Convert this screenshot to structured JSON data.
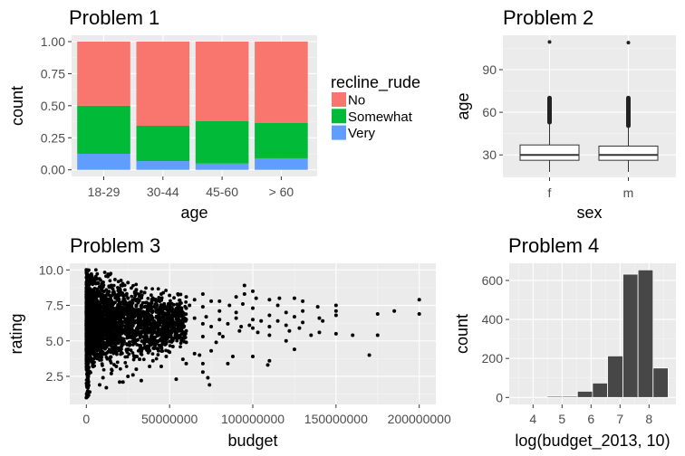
{
  "chart_data": [
    {
      "type": "bar",
      "stacked": "fill",
      "title": "Problem 1",
      "xlabel": "age",
      "ylabel": "count",
      "categories": [
        "18-29",
        "30-44",
        "45-60",
        "> 60"
      ],
      "series": [
        {
          "name": "No",
          "color": "#F8766D",
          "values": [
            0.5,
            0.656,
            0.621,
            0.635
          ]
        },
        {
          "name": "Somewhat",
          "color": "#00BA38",
          "values": [
            0.375,
            0.276,
            0.33,
            0.275
          ]
        },
        {
          "name": "Very",
          "color": "#619CFF",
          "values": [
            0.125,
            0.068,
            0.049,
            0.09
          ]
        }
      ],
      "yticks": [
        "0.00",
        "0.25",
        "0.50",
        "0.75",
        "1.00"
      ],
      "ylim": [
        -0.05,
        1.05
      ],
      "legend": {
        "title": "recline_rude",
        "placement": "right",
        "labels": [
          "No",
          "Somewhat",
          "Very"
        ]
      },
      "grid": true
    },
    {
      "type": "box",
      "title": "Problem 2",
      "xlabel": "sex",
      "ylabel": "age",
      "categories": [
        "f",
        "m"
      ],
      "boxes": [
        {
          "lower_whisker": 18,
          "q1": 26.2,
          "median": 30,
          "q3": 37,
          "upper_whisker": 53,
          "outlier_band": [
            53,
            70
          ],
          "outliers": [
            109.5
          ]
        },
        {
          "lower_whisker": 18,
          "q1": 26.2,
          "median": 30,
          "q3": 36.2,
          "upper_whisker": 50.5,
          "outlier_band": [
            50.5,
            70
          ],
          "outliers": [
            109
          ]
        }
      ],
      "yticks": [
        30,
        60,
        90
      ],
      "ylim": [
        14.2,
        114.2
      ],
      "grid": true
    },
    {
      "type": "scatter",
      "title": "Problem 3",
      "xlabel": "budget",
      "ylabel": "rating",
      "xticks": [
        "0",
        "50000000",
        "100000000",
        "150000000",
        "200000000"
      ],
      "xtick_values": [
        0,
        50000000,
        100000000,
        150000000,
        200000000
      ],
      "yticks": [
        "2.5",
        "5.0",
        "7.5",
        "10.0"
      ],
      "ytick_values": [
        2.5,
        5.0,
        7.5,
        10.0
      ],
      "xlim": [
        -10000000,
        210000000
      ],
      "ylim": [
        0.6,
        10.4
      ],
      "dense_cluster": {
        "note": "heavy overplotting near budget 0-60M",
        "budget_range": [
          0,
          60000000
        ],
        "rating_range": [
          1.0,
          10.0
        ]
      },
      "points": [
        [
          200000000,
          7.9
        ],
        [
          200000000,
          6.9
        ],
        [
          185000000,
          7.1
        ],
        [
          175000000,
          6.9
        ],
        [
          175000000,
          5.4
        ],
        [
          170000000,
          4.0
        ],
        [
          160000000,
          5.4
        ],
        [
          150000000,
          7.5
        ],
        [
          150000000,
          7.1
        ],
        [
          150000000,
          6.8
        ],
        [
          150000000,
          5.5
        ],
        [
          142000000,
          6.4
        ],
        [
          140000000,
          6.6
        ],
        [
          140000000,
          5.6
        ],
        [
          139000000,
          7.4
        ],
        [
          135000000,
          5.4
        ],
        [
          130000000,
          7.8
        ],
        [
          130000000,
          7.1
        ],
        [
          130000000,
          6.3
        ],
        [
          128000000,
          5.9
        ],
        [
          125000000,
          8.0
        ],
        [
          125000000,
          6.7
        ],
        [
          125000000,
          4.4
        ],
        [
          122000000,
          5.7
        ],
        [
          120000000,
          7.0
        ],
        [
          120000000,
          6.1
        ],
        [
          120000000,
          5.0
        ],
        [
          116000000,
          8.0
        ],
        [
          115000000,
          6.4
        ],
        [
          115000000,
          7.5
        ],
        [
          110000000,
          7.9
        ],
        [
          110000000,
          6.8
        ],
        [
          110000000,
          6.0
        ],
        [
          110000000,
          5.4
        ],
        [
          110000000,
          3.6
        ],
        [
          109000000,
          3.3
        ],
        [
          105000000,
          6.4
        ],
        [
          103000000,
          5.6
        ],
        [
          102000000,
          8.0
        ],
        [
          100000000,
          8.5
        ],
        [
          100000000,
          7.3
        ],
        [
          100000000,
          6.5
        ],
        [
          100000000,
          5.9
        ],
        [
          100000000,
          3.9
        ],
        [
          98000000,
          6.1
        ],
        [
          95000000,
          8.9
        ],
        [
          95000000,
          8.3
        ],
        [
          94000000,
          7.6
        ],
        [
          93000000,
          6.0
        ],
        [
          92000000,
          5.7
        ],
        [
          90000000,
          8.1
        ],
        [
          90000000,
          7.0
        ],
        [
          90000000,
          6.6
        ],
        [
          88000000,
          3.9
        ],
        [
          86000000,
          7.5
        ],
        [
          85000000,
          6.2
        ],
        [
          85000000,
          3.4
        ],
        [
          82000000,
          5.3
        ],
        [
          80000000,
          7.8
        ],
        [
          80000000,
          7.1
        ],
        [
          80000000,
          6.5
        ],
        [
          80000000,
          5.5
        ],
        [
          78000000,
          4.9
        ],
        [
          75000000,
          7.8
        ],
        [
          75000000,
          6.0
        ],
        [
          75000000,
          4.3
        ],
        [
          74000000,
          1.9
        ],
        [
          73000000,
          2.4
        ],
        [
          72000000,
          6.7
        ],
        [
          70000000,
          8.3
        ],
        [
          70000000,
          7.4
        ],
        [
          70000000,
          6.2
        ],
        [
          70000000,
          5.3
        ],
        [
          70000000,
          3.4
        ],
        [
          70000000,
          2.8
        ],
        [
          68000000,
          4.0
        ],
        [
          65000000,
          7.9
        ],
        [
          65000000,
          6.6
        ],
        [
          65000000,
          4.1
        ],
        [
          62000000,
          7.5
        ],
        [
          60000000,
          8.1
        ],
        [
          60000000,
          7.3
        ],
        [
          60000000,
          6.5
        ],
        [
          60000000,
          5.7
        ],
        [
          60000000,
          4.9
        ],
        [
          60000000,
          3.4
        ],
        [
          58000000,
          3.7
        ],
        [
          55000000,
          8.3
        ],
        [
          55000000,
          7.0
        ],
        [
          55000000,
          6.1
        ],
        [
          55000000,
          5.2
        ],
        [
          54000000,
          2.3
        ],
        [
          52000000,
          4.6
        ],
        [
          50000000,
          8.2
        ],
        [
          50000000,
          7.6
        ],
        [
          50000000,
          6.8
        ],
        [
          50000000,
          5.6
        ],
        [
          50000000,
          4.2
        ],
        [
          48000000,
          3.9
        ],
        [
          45000000,
          8.3
        ],
        [
          45000000,
          7.2
        ],
        [
          45000000,
          6.3
        ],
        [
          45000000,
          5.4
        ],
        [
          45000000,
          3.2
        ],
        [
          42000000,
          4.8
        ],
        [
          40000000,
          8.0
        ],
        [
          40000000,
          7.1
        ],
        [
          40000000,
          6.0
        ],
        [
          40000000,
          5.1
        ],
        [
          40000000,
          3.6
        ],
        [
          38000000,
          3.2
        ],
        [
          35000000,
          8.4
        ],
        [
          35000000,
          7.4
        ],
        [
          35000000,
          6.4
        ],
        [
          35000000,
          4.5
        ],
        [
          33000000,
          2.2
        ],
        [
          32000000,
          3.7
        ],
        [
          30000000,
          8.6
        ],
        [
          30000000,
          7.5
        ],
        [
          30000000,
          5.6
        ],
        [
          30000000,
          3.0
        ],
        [
          28000000,
          2.6
        ],
        [
          25000000,
          9.1
        ],
        [
          25000000,
          8.0
        ],
        [
          25000000,
          4.4
        ],
        [
          25000000,
          2.5
        ],
        [
          22000000,
          2.1
        ],
        [
          20000000,
          8.7
        ],
        [
          20000000,
          2.1
        ],
        [
          18000000,
          3.2
        ],
        [
          15000000,
          8.9
        ],
        [
          15000000,
          2.7
        ],
        [
          12000000,
          1.7
        ],
        [
          10000000,
          8.8
        ],
        [
          10000000,
          2.4
        ],
        [
          8000000,
          1.9
        ],
        [
          5000000,
          9.1
        ],
        [
          3000000,
          9.7
        ],
        [
          2000000,
          1.4
        ],
        [
          0,
          10.0
        ],
        [
          0,
          1.0
        ]
      ],
      "grid": true
    },
    {
      "type": "histogram",
      "title": "Problem 4",
      "xlabel": "log(budget_2013, 10)",
      "ylabel": "count",
      "bins": [
        {
          "x0": 4.49,
          "x1": 5.01,
          "count": 6
        },
        {
          "x0": 5.01,
          "x1": 5.53,
          "count": 6
        },
        {
          "x0": 5.53,
          "x1": 6.05,
          "count": 32
        },
        {
          "x0": 6.05,
          "x1": 6.57,
          "count": 74
        },
        {
          "x0": 6.57,
          "x1": 7.1,
          "count": 213
        },
        {
          "x0": 7.1,
          "x1": 7.62,
          "count": 632
        },
        {
          "x0": 7.62,
          "x1": 8.14,
          "count": 654
        },
        {
          "x0": 8.14,
          "x1": 8.66,
          "count": 151
        }
      ],
      "xticks": [
        4,
        5,
        6,
        7,
        8
      ],
      "yticks": [
        0,
        200,
        400,
        600
      ],
      "xlim": [
        3.17,
        8.94
      ],
      "ylim": [
        -34,
        688
      ],
      "bar_color": "#474747",
      "grid": true
    }
  ]
}
